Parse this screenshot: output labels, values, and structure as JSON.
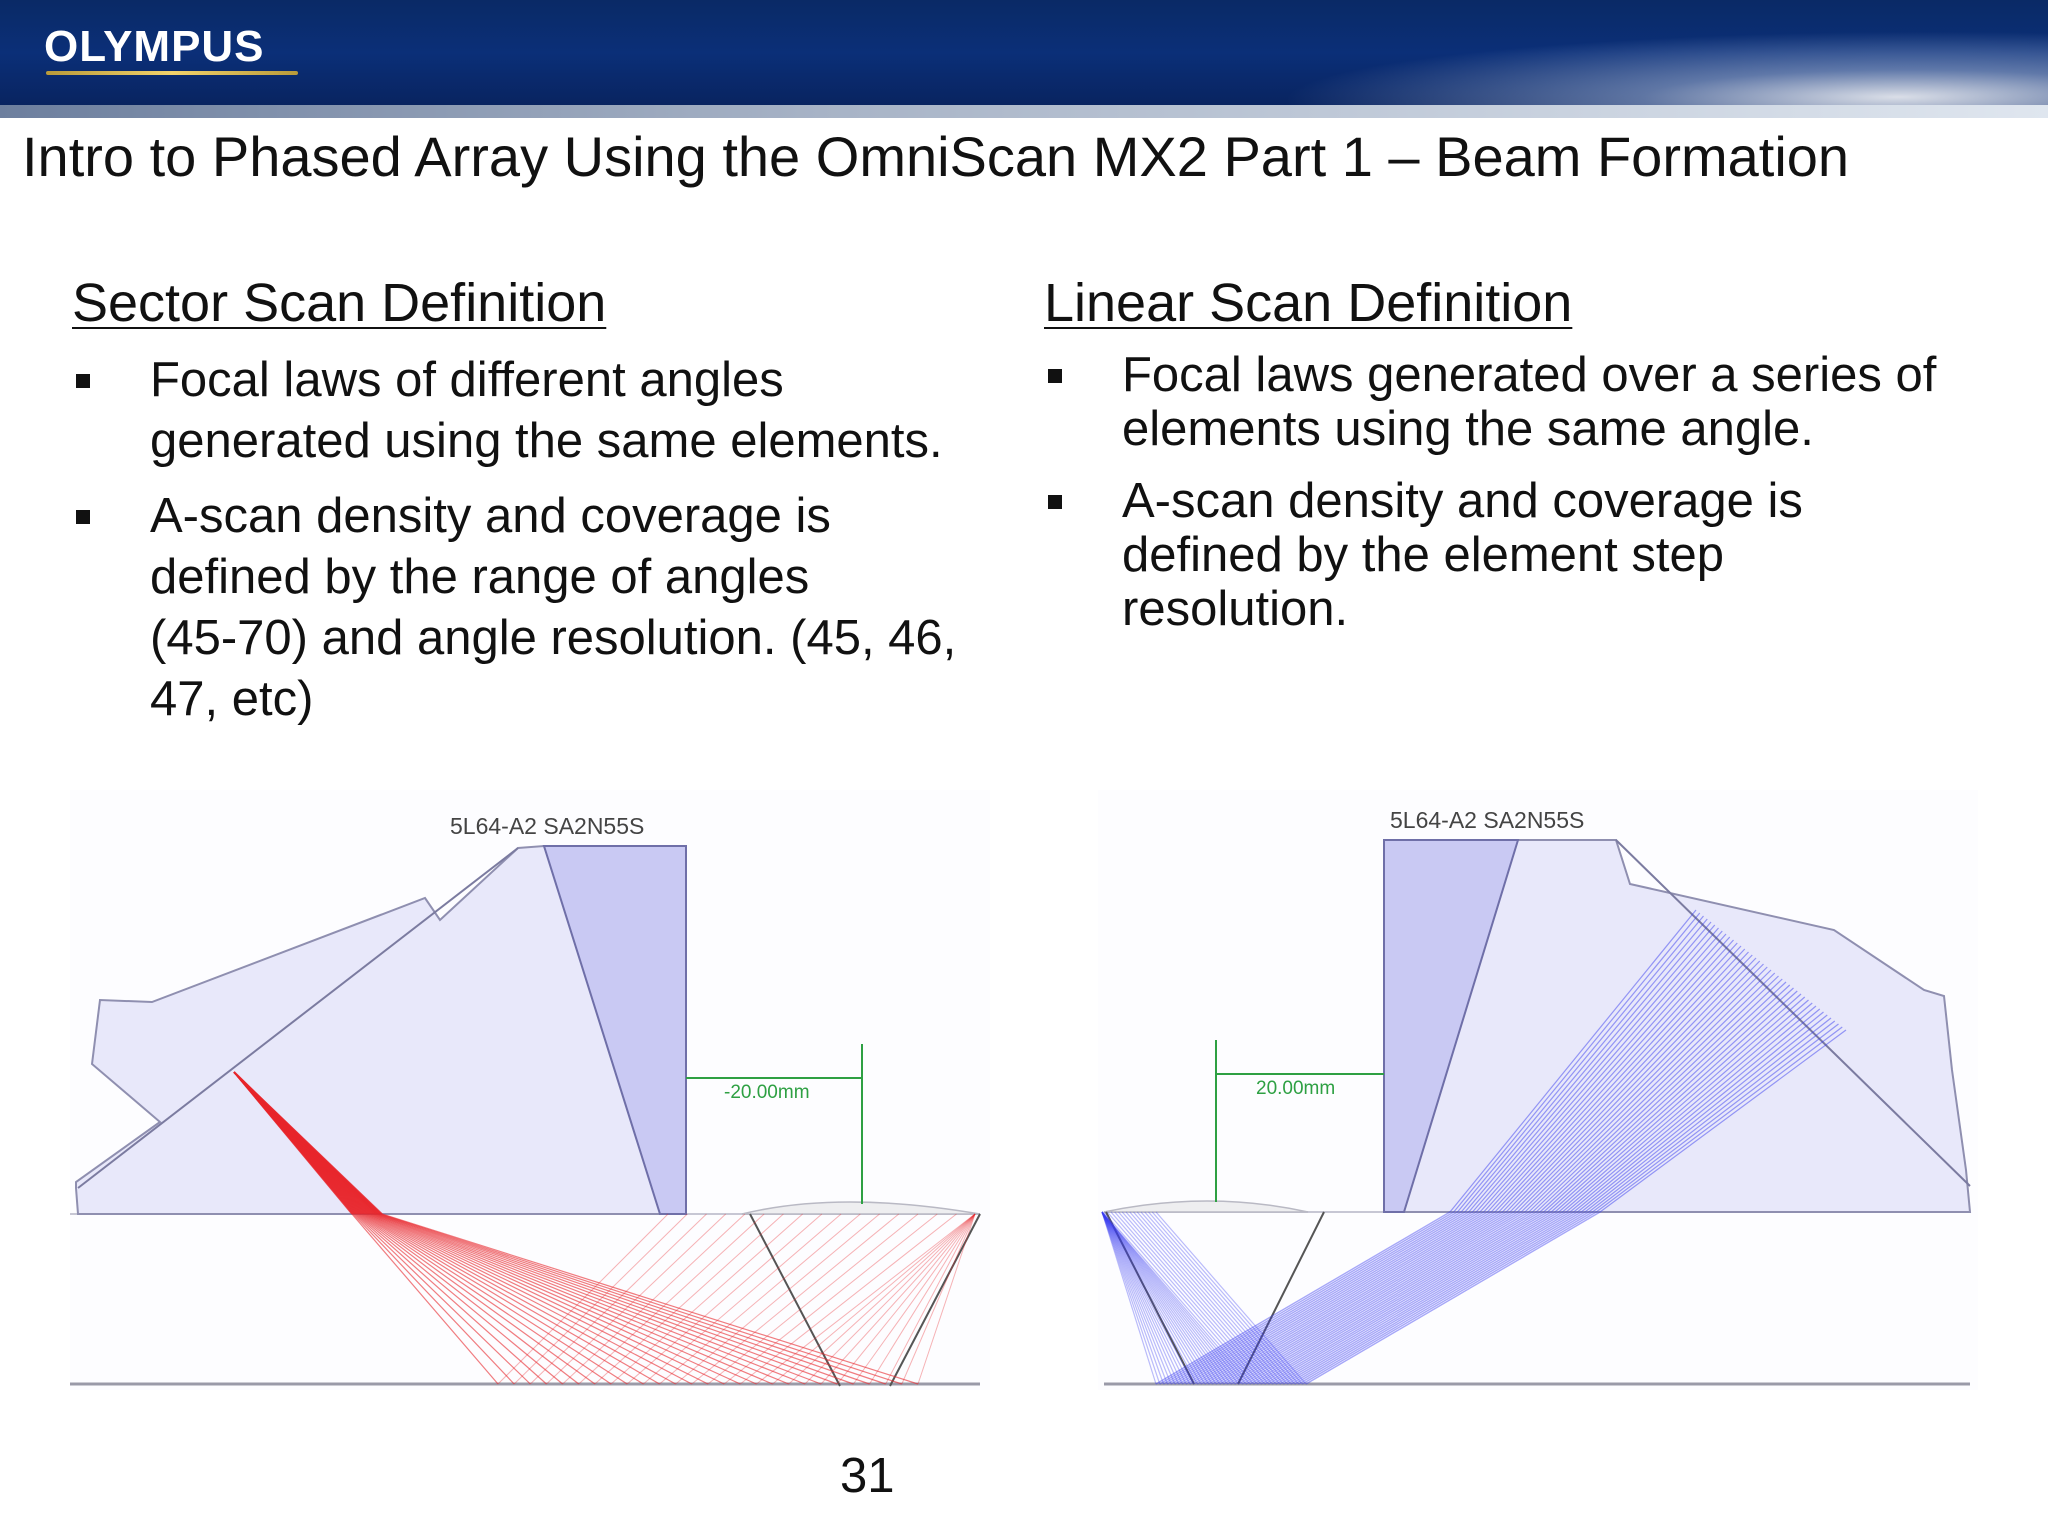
{
  "header": {
    "logo_text": "OLYMPUS",
    "colors": {
      "band": "#0b2f78",
      "logo_underline": "#f2d36b"
    }
  },
  "title": "Intro to Phased Array Using the OmniScan MX2 Part 1 – Beam Formation",
  "sector": {
    "heading": "Sector Scan Definition",
    "bullets": [
      [
        "Focal laws of different angles",
        "generated using the same elements."
      ],
      [
        "A-scan density and coverage is",
        "defined by the range of angles",
        "(45-70) and angle resolution. (45, 46,",
        "47, etc)"
      ]
    ],
    "diagram": {
      "probe_label": "5L64-A2 SA2N55S",
      "dimension_label": "-20.00mm",
      "beam_color": "#e8262b"
    }
  },
  "linear": {
    "heading": "Linear Scan Definition",
    "bullets": [
      [
        "Focal laws generated over a series of",
        "elements using the same angle."
      ],
      [
        "A-scan density and coverage is",
        "defined by the element step",
        "resolution."
      ]
    ],
    "diagram": {
      "probe_label": "5L64-A2 SA2N55S",
      "dimension_label": "20.00mm",
      "beam_color": "#3b3ff0"
    }
  },
  "page_number": "31"
}
